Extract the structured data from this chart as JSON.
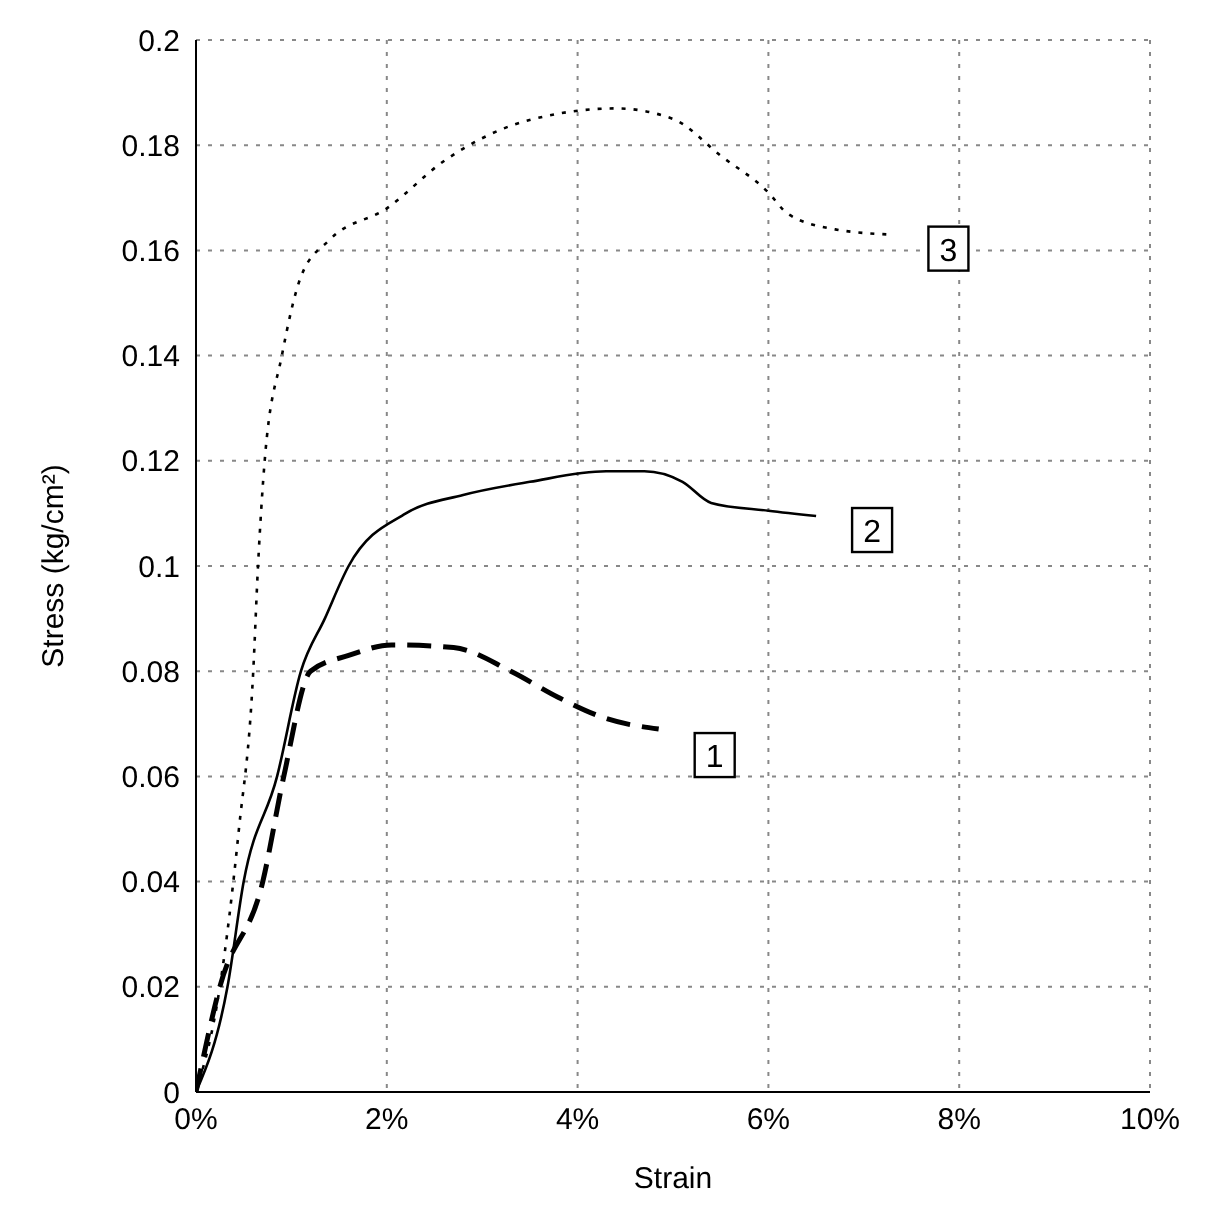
{
  "chart_data": {
    "type": "line",
    "xlabel": "Strain",
    "ylabel": "Stress (kg/cm²)",
    "xlim": [
      0,
      10
    ],
    "xticks": [
      {
        "value": 0,
        "label": "0%"
      },
      {
        "value": 2,
        "label": "2%"
      },
      {
        "value": 4,
        "label": "4%"
      },
      {
        "value": 6,
        "label": "6%"
      },
      {
        "value": 8,
        "label": "8%"
      },
      {
        "value": 10,
        "label": "10%"
      }
    ],
    "ylim": [
      0,
      0.2
    ],
    "yticks": [
      0,
      0.02,
      0.04,
      0.06,
      0.08,
      0.1,
      0.12,
      0.14,
      0.16,
      0.18,
      0.2
    ],
    "grid": true,
    "legend": false,
    "series": [
      {
        "name": "1",
        "color": "#000000",
        "line_style": "dashed",
        "x": [
          0,
          0.25,
          0.7,
          0.92,
          1.2,
          1.6,
          2.05,
          2.7,
          3.3,
          3.8,
          4.3,
          4.85
        ],
        "values": [
          0,
          0.02,
          0.04,
          0.06,
          0.08,
          0.083,
          0.085,
          0.0845,
          0.08,
          0.075,
          0.071,
          0.069
        ]
      },
      {
        "name": "2",
        "color": "#000000",
        "line_style": "solid",
        "x": [
          0,
          0.33,
          0.5,
          0.85,
          1.1,
          1.35,
          1.6,
          2.2,
          2.8,
          3.5,
          4.3,
          4.7,
          5.1,
          5.4,
          6.0,
          6.5
        ],
        "values": [
          0,
          0.02,
          0.04,
          0.06,
          0.08,
          0.09,
          0.1,
          0.11,
          0.1135,
          0.116,
          0.118,
          0.118,
          0.116,
          0.112,
          0.1105,
          0.1095
        ]
      },
      {
        "name": "3",
        "color": "#000000",
        "line_style": "dotted",
        "x": [
          0,
          0.25,
          0.45,
          0.6,
          0.65,
          0.72,
          0.9,
          1.1,
          1.4,
          2.0,
          2.6,
          3.2,
          3.8,
          4.4,
          5.0,
          5.5,
          6.0,
          6.2,
          6.7,
          7.3
        ],
        "values": [
          0,
          0.02,
          0.05,
          0.08,
          0.1,
          0.12,
          0.14,
          0.155,
          0.162,
          0.168,
          0.177,
          0.183,
          0.186,
          0.187,
          0.185,
          0.178,
          0.171,
          0.167,
          0.164,
          0.163
        ]
      }
    ]
  }
}
